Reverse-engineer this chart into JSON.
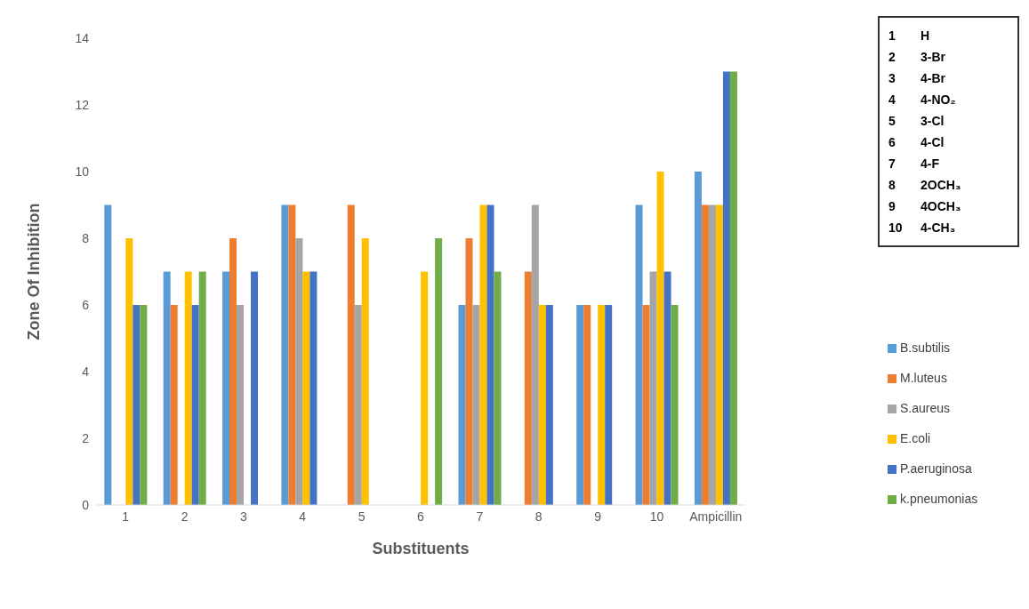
{
  "chart_data": {
    "type": "bar",
    "xlabel": "Substituents",
    "ylabel": "Zone Of Inhibition",
    "categories": [
      "1",
      "2",
      "3",
      "4",
      "5",
      "6",
      "7",
      "8",
      "9",
      "10",
      "Ampicillin"
    ],
    "series": [
      {
        "name": "B.subtilis",
        "color": "#5b9bd5",
        "values": [
          9,
          7,
          7,
          9,
          0,
          0,
          6,
          0,
          6,
          9,
          10
        ]
      },
      {
        "name": "M.luteus",
        "color": "#ed7d31",
        "values": [
          0,
          6,
          8,
          9,
          9,
          0,
          8,
          7,
          6,
          6,
          9
        ]
      },
      {
        "name": "S.aureus",
        "color": "#a5a5a5",
        "values": [
          0,
          0,
          6,
          8,
          6,
          0,
          6,
          9,
          0,
          7,
          9
        ]
      },
      {
        "name": "E.coli",
        "color": "#ffc000",
        "values": [
          8,
          7,
          0,
          7,
          8,
          7,
          9,
          6,
          6,
          10,
          9
        ]
      },
      {
        "name": "P.aeruginosa",
        "color": "#4472c4",
        "values": [
          6,
          6,
          7,
          7,
          0,
          0,
          9,
          6,
          6,
          7,
          13
        ]
      },
      {
        "name": "k.pneumonias",
        "color": "#70ad47",
        "values": [
          6,
          7,
          0,
          0,
          0,
          8,
          7,
          0,
          0,
          6,
          13
        ]
      }
    ],
    "ylim": [
      0,
      14
    ],
    "yticks": [
      0,
      2,
      4,
      6,
      8,
      10,
      12,
      14
    ],
    "grid": false,
    "legend": "right",
    "annotations": [
      "1 H",
      "2 3-Br",
      "3 4-Br",
      "4 4-NO₂",
      "5 3-Cl",
      "6 4-Cl",
      "7 4-F",
      "8 2OCH₃",
      "9 4OCH₃",
      "10 4-CH₃"
    ]
  }
}
